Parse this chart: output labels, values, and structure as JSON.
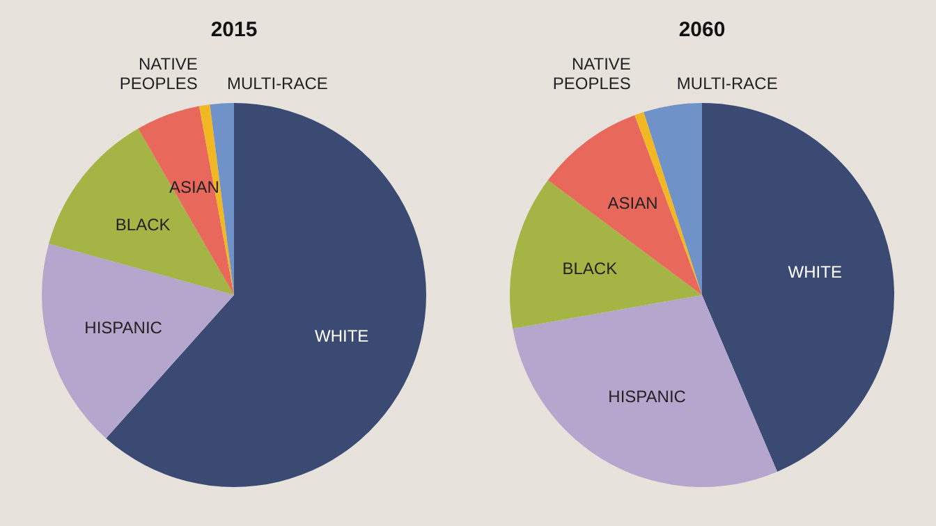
{
  "chart_data": [
    {
      "type": "pie",
      "title": "2015",
      "categories": [
        "WHITE",
        "HISPANIC",
        "BLACK",
        "ASIAN",
        "NATIVE PEOPLES",
        "MULTI-RACE"
      ],
      "values": [
        61.6,
        17.7,
        12.4,
        5.4,
        0.9,
        2.0
      ],
      "colors": [
        "#3b4a73",
        "#b5a6cd",
        "#a4b445",
        "#e8695b",
        "#f2b824",
        "#6f92c9"
      ]
    },
    {
      "type": "pie",
      "title": "2060",
      "categories": [
        "WHITE",
        "HISPANIC",
        "BLACK",
        "ASIAN",
        "NATIVE PEOPLES",
        "MULTI-RACE"
      ],
      "values": [
        43.6,
        28.6,
        13.0,
        9.1,
        0.8,
        4.9
      ],
      "colors": [
        "#3b4a73",
        "#b5a6cd",
        "#a4b445",
        "#e8695b",
        "#f2b824",
        "#6f92c9"
      ]
    }
  ]
}
